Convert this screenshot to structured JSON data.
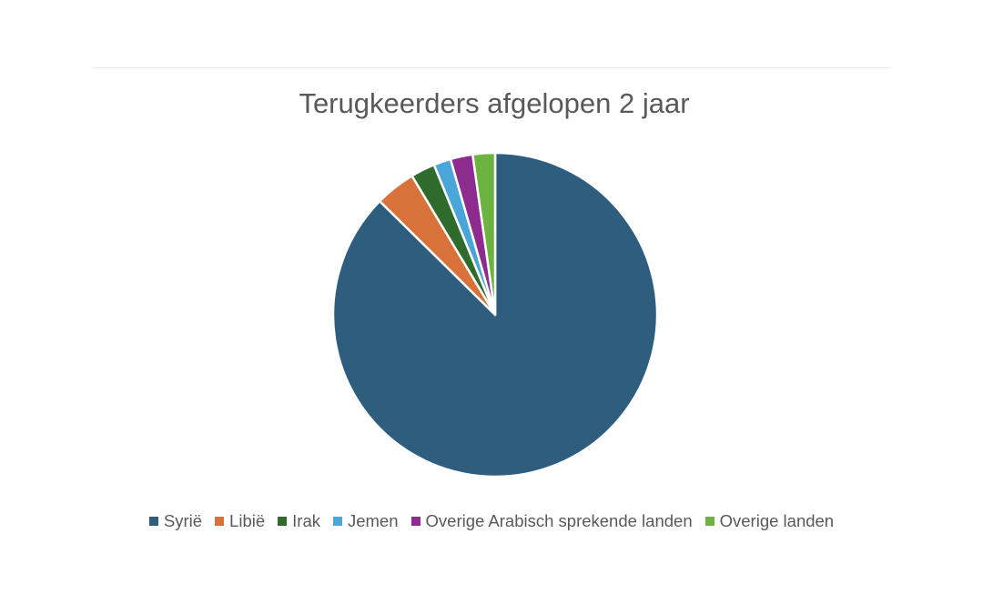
{
  "chart_data": {
    "type": "pie",
    "title": "Terugkeerders afgelopen 2 jaar",
    "categories": [
      "Syrië",
      "Libië",
      "Irak",
      "Jemen",
      "Overige Arabisch sprekende landen",
      "Overige landen"
    ],
    "values": [
      86.5,
      4.0,
      2.4,
      1.7,
      2.2,
      2.2
    ],
    "colors": [
      "#2e5d7e",
      "#d9713a",
      "#2f6b2d",
      "#4aa6d8",
      "#8e2b8e",
      "#6db33f"
    ],
    "start_angle_deg": 0,
    "direction": "clockwise",
    "legend_position": "bottom"
  }
}
